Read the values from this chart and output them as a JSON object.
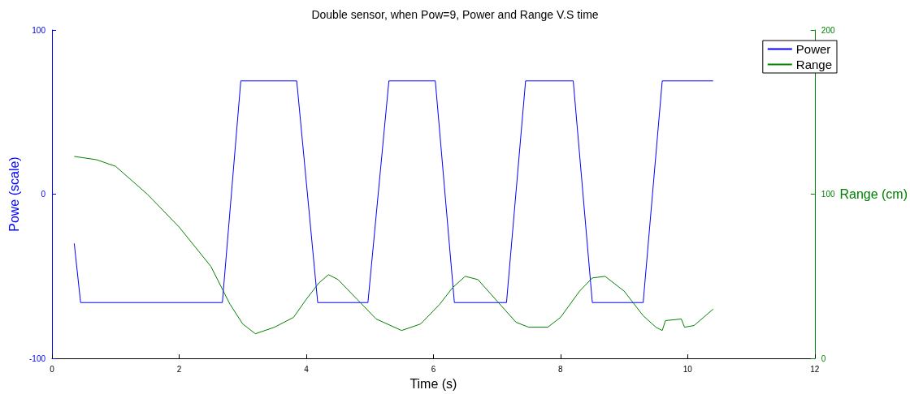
{
  "chart_data": {
    "type": "line",
    "title": "Double sensor, when Pow=9, Power and Range V.S time",
    "xlabel": "Time (s)",
    "ylabel": "Powe (scale)",
    "y2label": "Range (cm)",
    "xlim": [
      0,
      12
    ],
    "xticks": [
      0,
      2,
      4,
      6,
      8,
      10,
      12
    ],
    "ylim": [
      -100,
      100
    ],
    "yticks": [
      -100,
      0,
      100
    ],
    "y2lim": [
      0,
      200
    ],
    "y2ticks": [
      0,
      100,
      200
    ],
    "grid": false,
    "legend": "top right",
    "marker": "none",
    "line_style": "solid",
    "series": [
      {
        "name": "Power",
        "color": "#0000ff",
        "x": [
          0.35,
          0.45,
          2.68,
          2.97,
          3.85,
          4.18,
          4.97,
          5.3,
          6.03,
          6.33,
          7.15,
          7.45,
          8.2,
          8.5,
          9.3,
          9.6,
          10.4
        ],
        "values": [
          -30,
          -66,
          -66,
          69,
          69,
          -66,
          -66,
          69,
          69,
          -66,
          -66,
          69,
          69,
          -66,
          -66,
          69,
          69
        ]
      },
      {
        "name": "Range",
        "color": "#008000",
        "axis": "y2",
        "x": [
          0.35,
          0.7,
          1,
          1.5,
          2,
          2.5,
          2.8,
          3,
          3.2,
          3.5,
          3.8,
          4,
          4.2,
          4.35,
          4.5,
          4.8,
          5.1,
          5.5,
          5.8,
          6.1,
          6.3,
          6.5,
          6.7,
          7,
          7.3,
          7.5,
          7.8,
          8,
          8.3,
          8.5,
          8.7,
          9,
          9.3,
          9.5,
          9.6,
          9.65,
          9.9,
          9.95,
          10.1,
          10.4
        ],
        "values": [
          123,
          121,
          117,
          100,
          80,
          56,
          33,
          21,
          15,
          19,
          25,
          36,
          46,
          51,
          48,
          36,
          24,
          17,
          21,
          33,
          43,
          50,
          48,
          35,
          22,
          19,
          19,
          25,
          41,
          49,
          50,
          41,
          26,
          19,
          17,
          23,
          24,
          19,
          20,
          30
        ]
      }
    ]
  }
}
